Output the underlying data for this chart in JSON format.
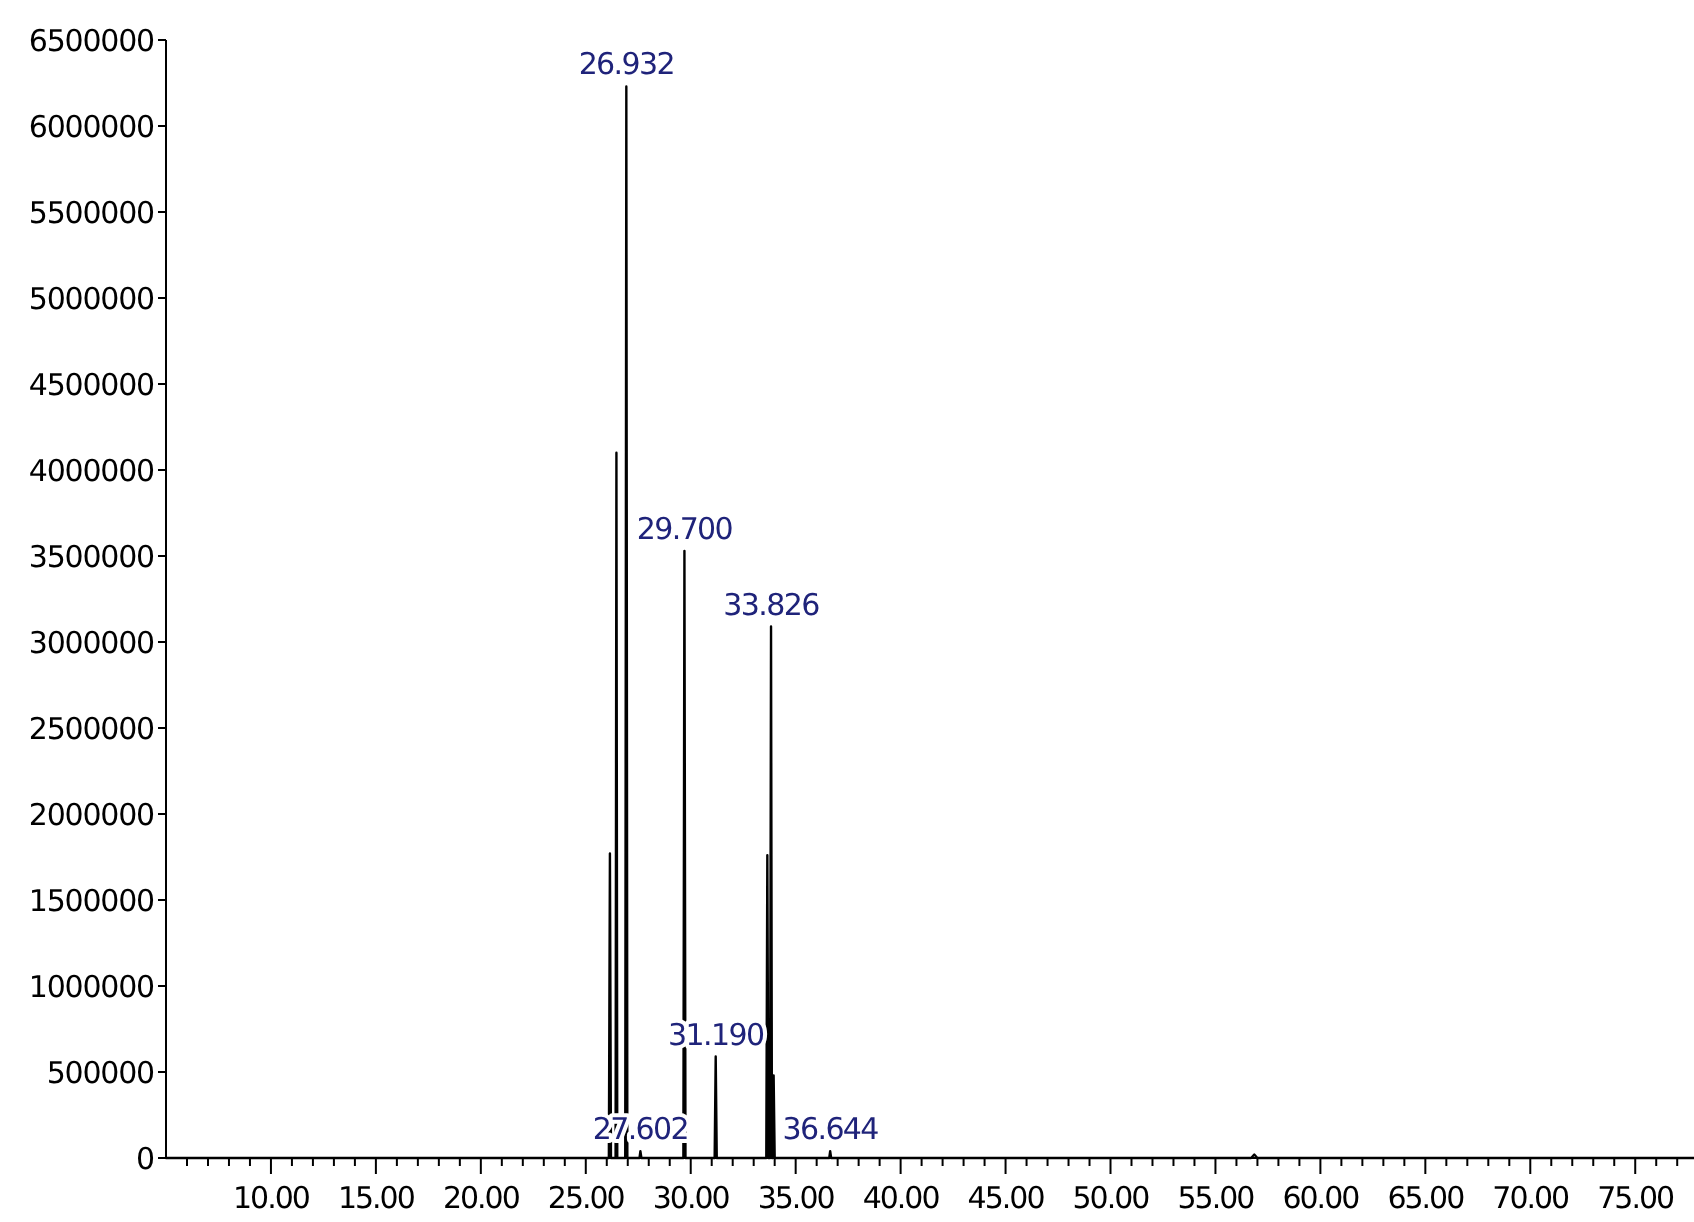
{
  "chart_data": {
    "type": "line",
    "x": [
      5,
      26.1,
      26.15,
      26.2,
      26.42,
      26.46,
      26.5,
      26.88,
      26.932,
      26.98,
      27.56,
      27.602,
      27.65,
      29.65,
      29.7,
      29.75,
      31.14,
      31.19,
      31.24,
      33.6,
      33.65,
      33.7,
      33.78,
      33.826,
      33.87,
      33.91,
      33.95,
      34,
      36.6,
      36.644,
      36.69,
      56.7,
      56.85,
      57,
      77.8
    ],
    "series": [
      {
        "color": "#000000",
        "values": [
          0,
          0,
          1770000,
          0,
          0,
          4100000,
          0,
          0,
          6230000,
          0,
          0,
          40000,
          0,
          0,
          3530000,
          0,
          0,
          590000,
          0,
          0,
          1760000,
          0,
          0,
          3090000,
          0,
          0,
          480000,
          0,
          0,
          40000,
          0,
          0,
          20000,
          0,
          0
        ]
      }
    ],
    "xlim": [
      5,
      77.8
    ],
    "xticks": [
      {
        "value": 6,
        "label": null
      },
      {
        "value": 7,
        "label": null
      },
      {
        "value": 8,
        "label": null
      },
      {
        "value": 9,
        "label": null
      },
      {
        "value": 10,
        "label": "10.00"
      },
      {
        "value": 11,
        "label": null
      },
      {
        "value": 12,
        "label": null
      },
      {
        "value": 13,
        "label": null
      },
      {
        "value": 14,
        "label": null
      },
      {
        "value": 15,
        "label": "15.00"
      },
      {
        "value": 16,
        "label": null
      },
      {
        "value": 17,
        "label": null
      },
      {
        "value": 18,
        "label": null
      },
      {
        "value": 19,
        "label": null
      },
      {
        "value": 20,
        "label": "20.00"
      },
      {
        "value": 21,
        "label": null
      },
      {
        "value": 22,
        "label": null
      },
      {
        "value": 23,
        "label": null
      },
      {
        "value": 24,
        "label": null
      },
      {
        "value": 25,
        "label": "25.00"
      },
      {
        "value": 26,
        "label": null
      },
      {
        "value": 27,
        "label": null
      },
      {
        "value": 28,
        "label": null
      },
      {
        "value": 29,
        "label": null
      },
      {
        "value": 30,
        "label": "30.00"
      },
      {
        "value": 31,
        "label": null
      },
      {
        "value": 32,
        "label": null
      },
      {
        "value": 33,
        "label": null
      },
      {
        "value": 34,
        "label": null
      },
      {
        "value": 35,
        "label": "35.00"
      },
      {
        "value": 36,
        "label": null
      },
      {
        "value": 37,
        "label": null
      },
      {
        "value": 38,
        "label": null
      },
      {
        "value": 39,
        "label": null
      },
      {
        "value": 40,
        "label": "40.00"
      },
      {
        "value": 41,
        "label": null
      },
      {
        "value": 42,
        "label": null
      },
      {
        "value": 43,
        "label": null
      },
      {
        "value": 44,
        "label": null
      },
      {
        "value": 45,
        "label": "45.00"
      },
      {
        "value": 46,
        "label": null
      },
      {
        "value": 47,
        "label": null
      },
      {
        "value": 48,
        "label": null
      },
      {
        "value": 49,
        "label": null
      },
      {
        "value": 50,
        "label": "50.00"
      },
      {
        "value": 51,
        "label": null
      },
      {
        "value": 52,
        "label": null
      },
      {
        "value": 53,
        "label": null
      },
      {
        "value": 54,
        "label": null
      },
      {
        "value": 55,
        "label": "55.00"
      },
      {
        "value": 56,
        "label": null
      },
      {
        "value": 57,
        "label": null
      },
      {
        "value": 58,
        "label": null
      },
      {
        "value": 59,
        "label": null
      },
      {
        "value": 60,
        "label": "60.00"
      },
      {
        "value": 61,
        "label": null
      },
      {
        "value": 62,
        "label": null
      },
      {
        "value": 63,
        "label": null
      },
      {
        "value": 64,
        "label": null
      },
      {
        "value": 65,
        "label": "65.00"
      },
      {
        "value": 66,
        "label": null
      },
      {
        "value": 67,
        "label": null
      },
      {
        "value": 68,
        "label": null
      },
      {
        "value": 69,
        "label": null
      },
      {
        "value": 70,
        "label": "70.00"
      },
      {
        "value": 71,
        "label": null
      },
      {
        "value": 72,
        "label": null
      },
      {
        "value": 73,
        "label": null
      },
      {
        "value": 74,
        "label": null
      },
      {
        "value": 75,
        "label": "75.00"
      },
      {
        "value": 76,
        "label": null
      },
      {
        "value": 77,
        "label": null
      }
    ],
    "ylim": [
      0,
      6500000
    ],
    "yticks": [
      0,
      500000,
      1000000,
      1500000,
      2000000,
      2500000,
      3000000,
      3500000,
      4000000,
      4500000,
      5000000,
      5500000,
      6000000,
      6500000
    ],
    "annotations": [
      {
        "text": "26.932",
        "x": 26.932,
        "y": 6230000
      },
      {
        "text": "27.602",
        "x": 27.602,
        "y": 40000
      },
      {
        "text": "29.700",
        "x": 29.7,
        "y": 3530000
      },
      {
        "text": "31.190",
        "x": 31.19,
        "y": 590000
      },
      {
        "text": "33.826",
        "x": 33.826,
        "y": 3090000
      },
      {
        "text": "36.644",
        "x": 36.644,
        "y": 40000
      }
    ]
  }
}
